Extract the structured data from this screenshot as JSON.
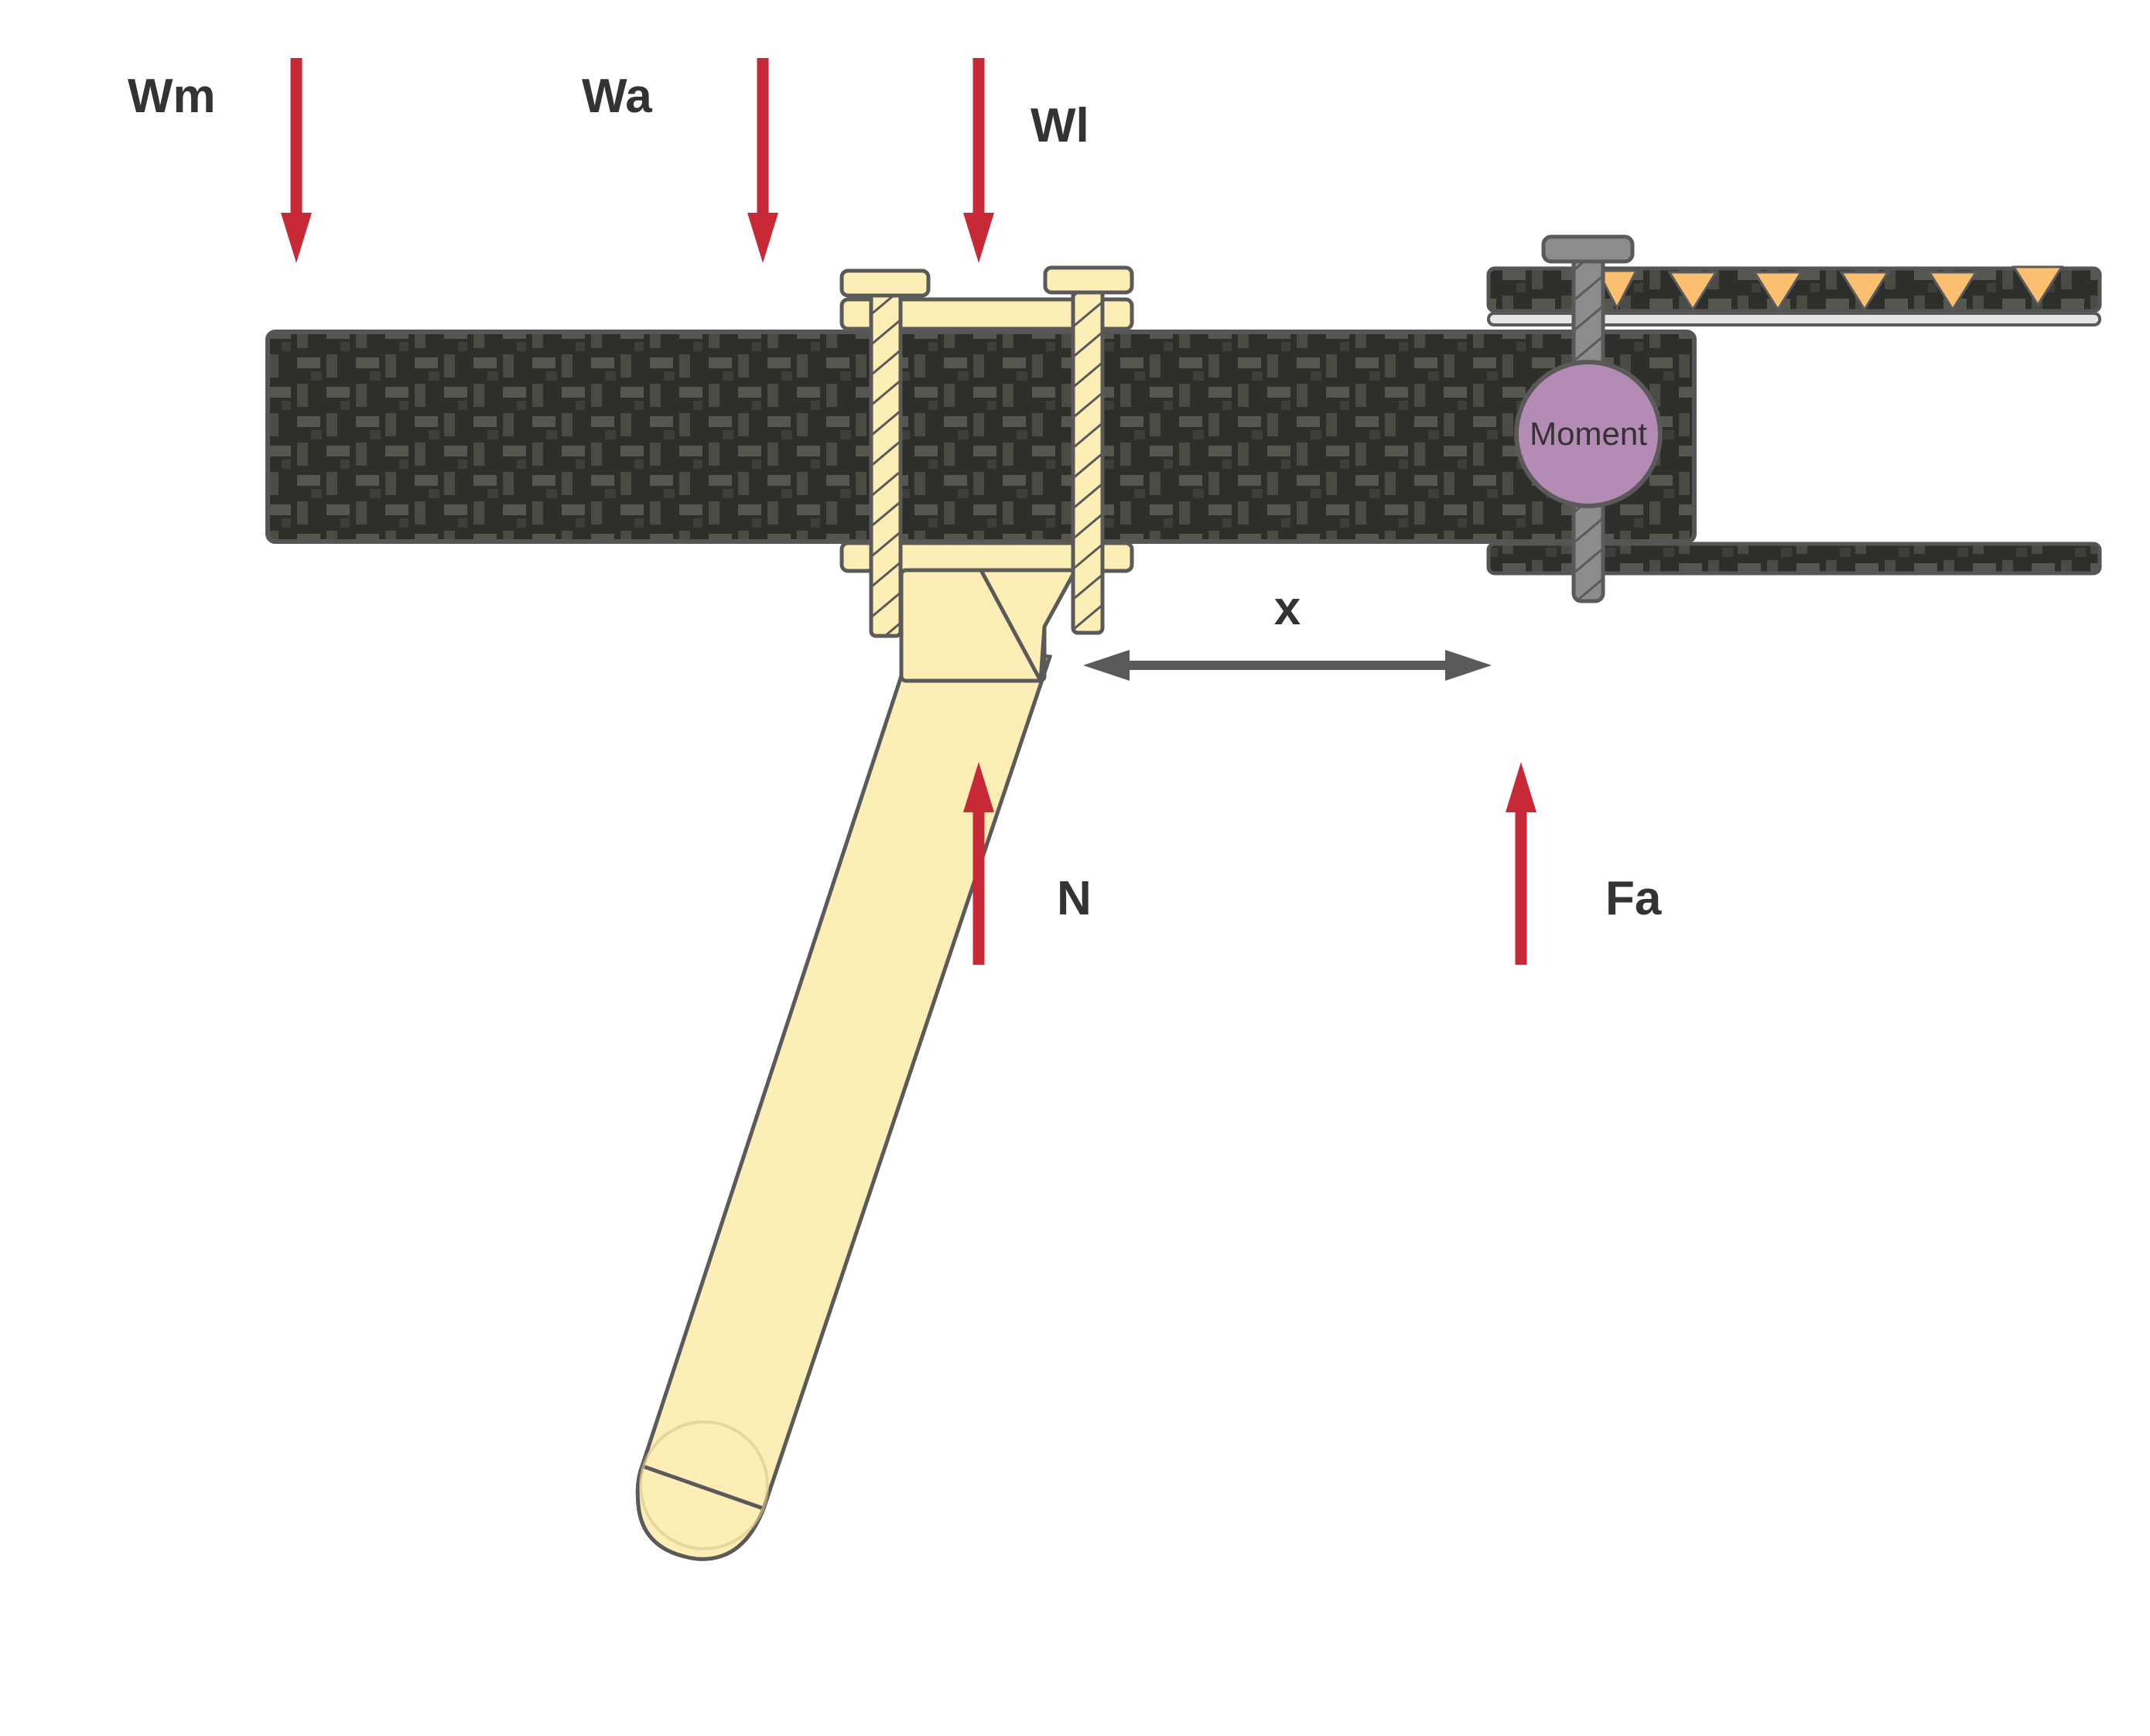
{
  "labels": {
    "wm": "Wm",
    "wa": "Wa",
    "wl": "Wl",
    "n": "N",
    "fa": "Fa",
    "x": "x",
    "moment": "Moment"
  },
  "colors": {
    "force": "#c72a36",
    "carbon_dark": "#2e2e2a",
    "carbon_weave": "#56574e",
    "wood": "#fdeeb6",
    "outline": "#5a5a5a",
    "moment_fill": "#b48bb4",
    "bolt": "#8c8c8c",
    "teeth": "#fbbf6f"
  },
  "icons": {
    "force_arrow": "arrow-icon",
    "dimension_arrow": "double-arrow-icon",
    "moment": "circle-icon"
  }
}
